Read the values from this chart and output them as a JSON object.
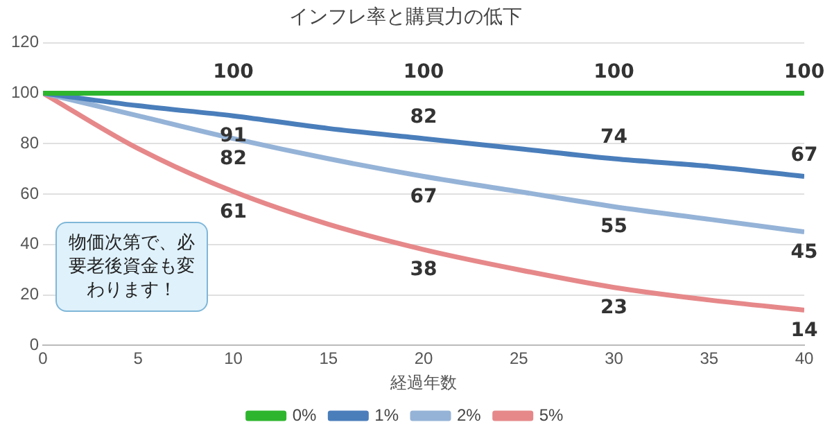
{
  "chart_data": {
    "type": "line",
    "title": "インフレ率と購買力の低下",
    "xlabel": "経過年数",
    "x": [
      0,
      5,
      10,
      15,
      20,
      25,
      30,
      35,
      40
    ],
    "series": [
      {
        "name": "0%",
        "color": "#2eb52e",
        "values": [
          100,
          100,
          100,
          100,
          100,
          100,
          100,
          100,
          100
        ],
        "value_labels": [
          null,
          null,
          "100",
          null,
          "100",
          null,
          "100",
          null,
          "100"
        ]
      },
      {
        "name": "1%",
        "color": "#4a7ebb",
        "values": [
          100,
          95,
          91,
          86,
          82,
          78,
          74,
          71,
          67
        ],
        "value_labels": [
          null,
          null,
          "91",
          null,
          "82",
          null,
          "74",
          null,
          "67"
        ]
      },
      {
        "name": "2%",
        "color": "#95b3d7",
        "values": [
          100,
          91,
          82,
          74,
          67,
          61,
          55,
          50,
          45
        ],
        "value_labels": [
          null,
          null,
          "82",
          null,
          "67",
          null,
          "55",
          null,
          "45"
        ]
      },
      {
        "name": "5%",
        "color": "#e6888a",
        "values": [
          100,
          78,
          61,
          48,
          38,
          30,
          23,
          18,
          14
        ],
        "value_labels": [
          null,
          null,
          "61",
          null,
          "38",
          null,
          "23",
          null,
          "14"
        ]
      }
    ],
    "xlim": [
      0,
      40
    ],
    "xticks": [
      0,
      5,
      10,
      15,
      20,
      25,
      30,
      35,
      40
    ],
    "ylim": [
      0,
      120
    ],
    "yticks": [
      0,
      20,
      40,
      60,
      80,
      100,
      120
    ],
    "grid": "y",
    "legend": "bottom",
    "marker": "none",
    "line_style": "solid",
    "annotations": [
      "物価次第で、必要老後資金も変わります！"
    ]
  }
}
